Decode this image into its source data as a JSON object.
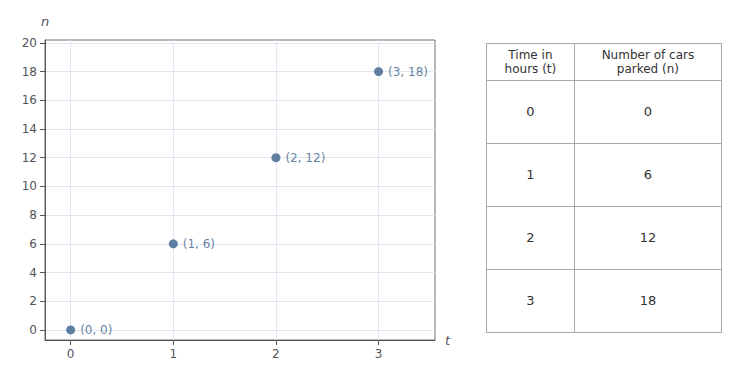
{
  "chart_data": {
    "type": "scatter",
    "color": "#3a5f8a",
    "x": [
      0,
      1,
      2,
      3
    ],
    "values": [
      0,
      6,
      12,
      18
    ],
    "xlabel": "t",
    "ylabel": "n",
    "xlim": [
      -0.25,
      3.55
    ],
    "ylim": [
      -0.7,
      20.2
    ],
    "xticks": [
      0,
      1,
      2,
      3
    ],
    "yticks": [
      0,
      2,
      4,
      6,
      8,
      10,
      12,
      14,
      16,
      18,
      20
    ],
    "grid": true,
    "annotations": [
      {
        "text": "(0, 0)",
        "x": 0,
        "y": 0
      },
      {
        "text": "(1, 6)",
        "x": 1,
        "y": 6
      },
      {
        "text": "(2, 12)",
        "x": 2,
        "y": 12
      },
      {
        "text": "(3, 18)",
        "x": 3,
        "y": 18
      }
    ],
    "table": {
      "columns": [
        "Time in\nhours (t)",
        "Number of cars\nparked (n)"
      ],
      "rows": [
        [
          "0",
          "0"
        ],
        [
          "1",
          "6"
        ],
        [
          "2",
          "12"
        ],
        [
          "3",
          "18"
        ]
      ]
    }
  }
}
